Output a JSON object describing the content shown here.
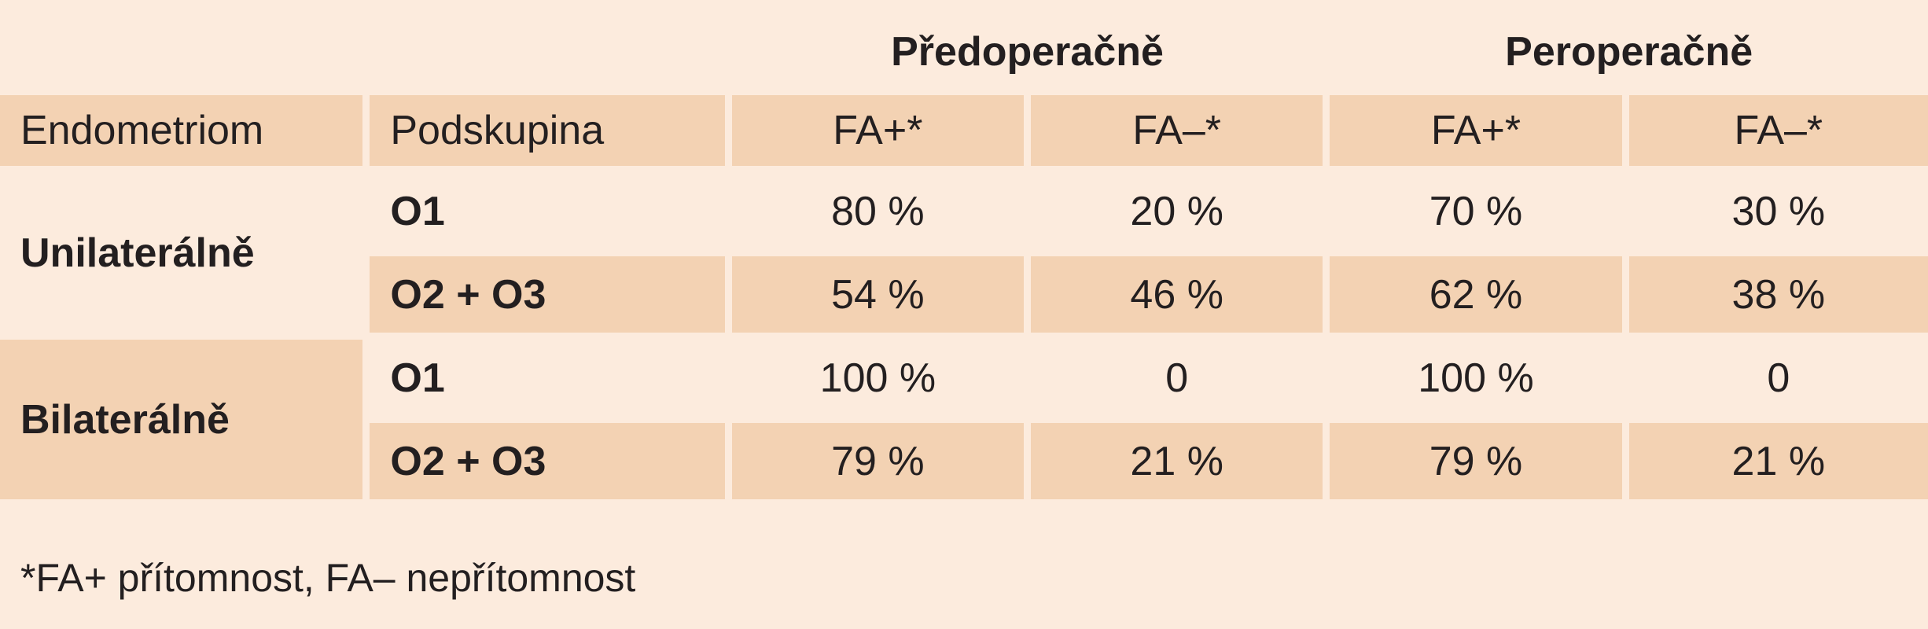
{
  "table": {
    "groups": [
      {
        "label": ""
      },
      {
        "label": "Předoperačně"
      },
      {
        "label": "Peroperačně"
      }
    ],
    "headers": [
      "Endometriom",
      "Podskupina",
      "FA+*",
      "FA–*",
      "FA+*",
      "FA–*"
    ],
    "sections": [
      {
        "label": "Unilaterálně",
        "rows": [
          {
            "sub": "O1",
            "values": [
              "80 %",
              "20 %",
              "70 %",
              "30 %"
            ]
          },
          {
            "sub": "O2 + O3",
            "values": [
              "54 %",
              "46 %",
              "62 %",
              "38 %"
            ]
          }
        ]
      },
      {
        "label": "Bilaterálně",
        "rows": [
          {
            "sub": "O1",
            "values": [
              "100 %",
              "0",
              "100 %",
              "0"
            ]
          },
          {
            "sub": "O2 + O3",
            "values": [
              "79 %",
              "21 %",
              "79 %",
              "21 %"
            ]
          }
        ]
      }
    ]
  },
  "footnote": "*FA+ přítomnost, FA– nepřítomnost",
  "colors": {
    "background": "#fcebdd",
    "shade": "#f3d2b3",
    "text": "#231f20"
  }
}
